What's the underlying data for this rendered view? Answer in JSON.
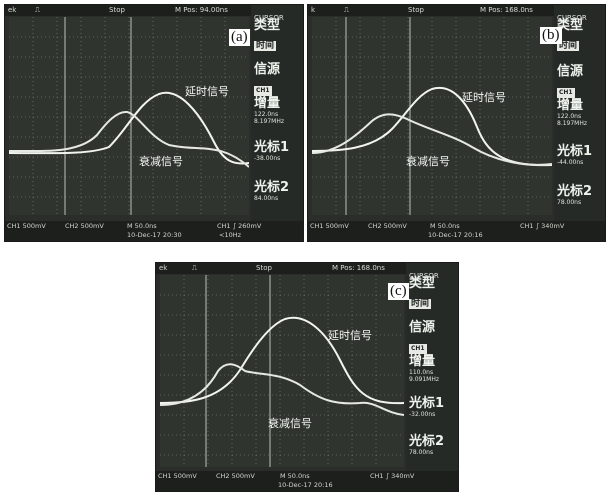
{
  "panels": [
    {
      "id": "a",
      "sublabel": "(a)",
      "top": {
        "brand": "ek",
        "stop": "Stop",
        "mpos": "M Pos: 94.00ns"
      },
      "side": {
        "cursor": "CURSOR",
        "type": "类型",
        "type_val": "时间",
        "source": "信源",
        "source_val": "CH1",
        "delta": "增量",
        "delta_val1": "122.0ns",
        "delta_val2": "8.197MHz",
        "cursor1": "光标1",
        "cursor1_val": "-38.00ns",
        "cursor2": "光标2",
        "cursor2_val": "84.00ns"
      },
      "bottom": {
        "ch1": "CH1  500mV",
        "ch2": "CH2  500mV",
        "m": "M 50.0ns",
        "trig": "CH1 ∫  260mV",
        "date": "10-Dec-17 20:30",
        "freq": "<10Hz"
      },
      "labels": {
        "delayed": "延时信号",
        "attenuated": "衰减信号"
      }
    },
    {
      "id": "b",
      "sublabel": "(b)",
      "top": {
        "brand": "k",
        "stop": "Stop",
        "mpos": "M Pos: 168.0ns"
      },
      "side": {
        "cursor": "CURSOR",
        "type": "类型",
        "type_val": "时间",
        "source": "信源",
        "source_val": "CH1",
        "delta": "增量",
        "delta_val1": "122.0ns",
        "delta_val2": "8.197MHz",
        "cursor1": "光标1",
        "cursor1_val": "-44.00ns",
        "cursor2": "光标2",
        "cursor2_val": "78.00ns"
      },
      "bottom": {
        "ch1": "CH1  500mV",
        "ch2": "CH2  500mV",
        "m": "M 50.0ns",
        "trig": "CH1 ∫  340mV",
        "date": "10-Dec-17 20:16",
        "freq": ""
      },
      "labels": {
        "delayed": "延时信号",
        "attenuated": "衰减信号"
      }
    },
    {
      "id": "c",
      "sublabel": "(c)",
      "top": {
        "brand": "ek",
        "stop": "Stop",
        "mpos": "M Pos: 168.0ns"
      },
      "side": {
        "cursor": "CURSOR",
        "type": "类型",
        "type_val": "时间",
        "source": "信源",
        "source_val": "CH1",
        "delta": "增量",
        "delta_val1": "110.0ns",
        "delta_val2": "9.091MHz",
        "cursor1": "光标1",
        "cursor1_val": "-32.00ns",
        "cursor2": "光标2",
        "cursor2_val": "78.00ns"
      },
      "bottom": {
        "ch1": "CH1  500mV",
        "ch2": "CH2  500mV",
        "m": "M 50.0ns",
        "trig": "CH1 ∫  340mV",
        "date": "10-Dec-17 20:16",
        "freq": ""
      },
      "labels": {
        "delayed": "延时信号",
        "attenuated": "衰减信号"
      }
    }
  ]
}
